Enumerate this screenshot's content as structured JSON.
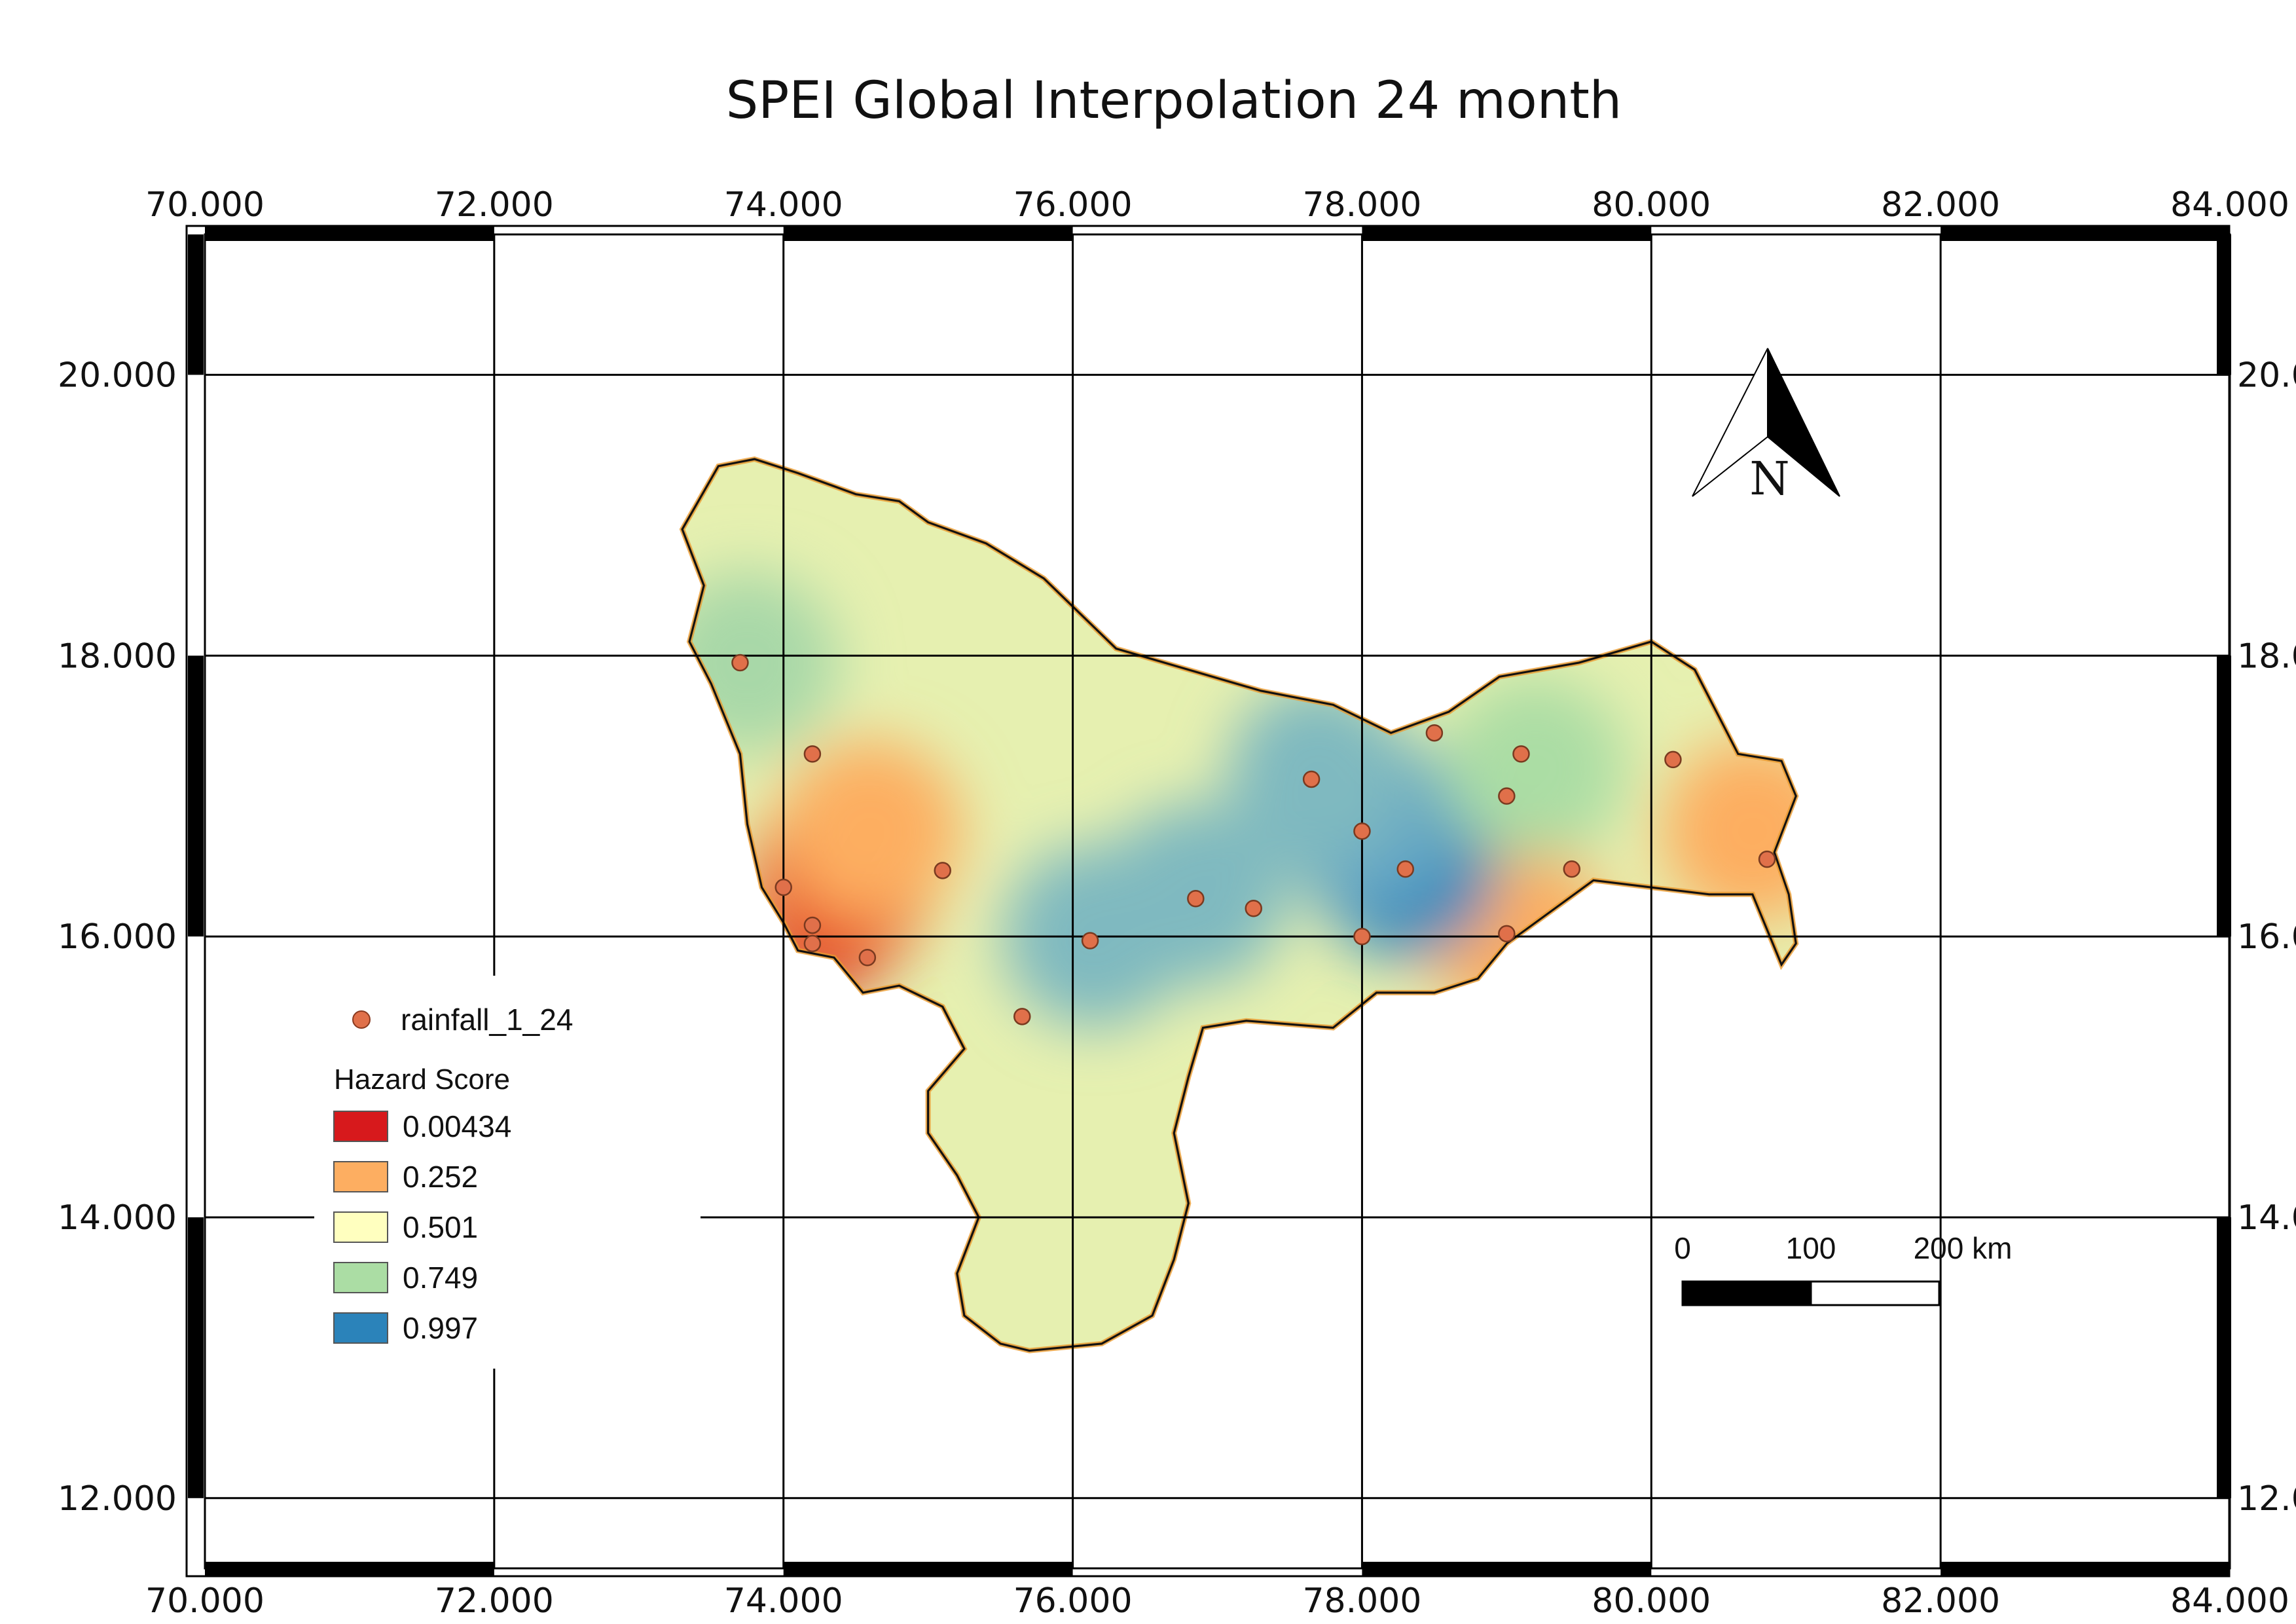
{
  "title": "SPEI Global Interpolation 24 month",
  "extent": {
    "lon": [
      70,
      84
    ],
    "lat": [
      11.5,
      21
    ]
  },
  "grid": {
    "lon_ticks": [
      70,
      72,
      74,
      76,
      78,
      80,
      82,
      84
    ],
    "lat_ticks": [
      12,
      14,
      16,
      18,
      20
    ],
    "lon_labels": [
      "70.000",
      "72.000",
      "74.000",
      "76.000",
      "78.000",
      "80.000",
      "82.000",
      "84.000"
    ],
    "lat_labels": [
      "12.000",
      "14.000",
      "16.000",
      "18.000",
      "20.000"
    ],
    "right_lat_labels": [
      "12.0",
      "14.0",
      "16.0",
      "18.0",
      "20.0"
    ]
  },
  "legend": {
    "point_layer": "rainfall_1_24",
    "heading": "Hazard Score",
    "classes": [
      {
        "label": "0.00434",
        "color": "#d7191c"
      },
      {
        "label": "0.252",
        "color": "#fdae61"
      },
      {
        "label": "0.501",
        "color": "#ffffbf"
      },
      {
        "label": "0.749",
        "color": "#abdda4"
      },
      {
        "label": "0.997",
        "color": "#2b83ba"
      }
    ]
  },
  "scale_bar": {
    "labels": [
      "0",
      "100",
      "200 km"
    ]
  },
  "north_arrow": {
    "label": "N"
  },
  "points": [
    {
      "lon": 73.7,
      "lat": 17.95
    },
    {
      "lon": 74.2,
      "lat": 17.3
    },
    {
      "lon": 74.0,
      "lat": 16.35
    },
    {
      "lon": 74.2,
      "lat": 16.08
    },
    {
      "lon": 74.2,
      "lat": 15.95
    },
    {
      "lon": 74.58,
      "lat": 15.85
    },
    {
      "lon": 75.1,
      "lat": 16.47
    },
    {
      "lon": 75.65,
      "lat": 15.43
    },
    {
      "lon": 76.12,
      "lat": 15.97
    },
    {
      "lon": 76.85,
      "lat": 16.27
    },
    {
      "lon": 77.25,
      "lat": 16.2
    },
    {
      "lon": 77.65,
      "lat": 17.12
    },
    {
      "lon": 78.0,
      "lat": 16.75
    },
    {
      "lon": 78.3,
      "lat": 16.48
    },
    {
      "lon": 78.0,
      "lat": 16.0
    },
    {
      "lon": 78.5,
      "lat": 17.45
    },
    {
      "lon": 79.0,
      "lat": 17.0
    },
    {
      "lon": 79.1,
      "lat": 17.3
    },
    {
      "lon": 79.45,
      "lat": 16.48
    },
    {
      "lon": 79.0,
      "lat": 16.02
    },
    {
      "lon": 80.15,
      "lat": 17.26
    },
    {
      "lon": 80.8,
      "lat": 16.55
    }
  ],
  "hotspots": [
    {
      "lon": 74.3,
      "lat": 16.1,
      "color": "#d7191c"
    },
    {
      "lon": 74.4,
      "lat": 16.4,
      "color": "#e8532c"
    },
    {
      "lon": 74.6,
      "lat": 16.75,
      "color": "#fdae61"
    },
    {
      "lon": 80.7,
      "lat": 16.75,
      "color": "#fdae61"
    },
    {
      "lon": 79.05,
      "lat": 16.05,
      "color": "#fdae61"
    },
    {
      "lon": 78.3,
      "lat": 16.5,
      "color": "#2b83ba"
    },
    {
      "lon": 78.05,
      "lat": 16.8,
      "color": "#63a6c4"
    },
    {
      "lon": 77.7,
      "lat": 17.15,
      "color": "#7fb9c0"
    },
    {
      "lon": 76.85,
      "lat": 16.3,
      "color": "#7fb9c0"
    },
    {
      "lon": 76.15,
      "lat": 16.0,
      "color": "#7fb9c0"
    },
    {
      "lon": 79.2,
      "lat": 17.2,
      "color": "#abdda4"
    },
    {
      "lon": 73.75,
      "lat": 17.95,
      "color": "#a8d8a8"
    }
  ]
}
